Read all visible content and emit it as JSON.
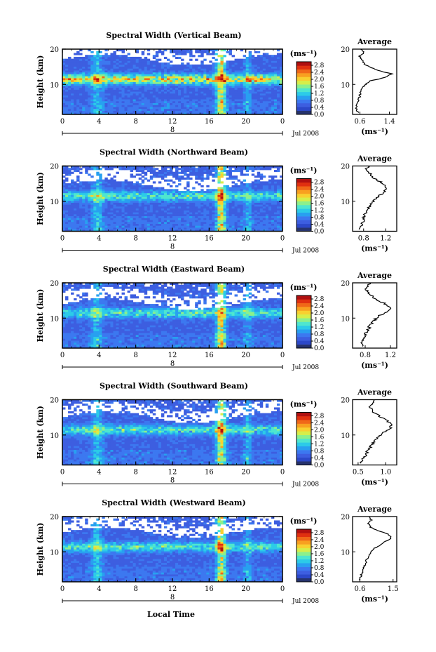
{
  "figure": {
    "xlabel": "Local Time",
    "date_label": "Jul 2008",
    "day_label": "8",
    "colors": [
      "#26336e",
      "#2c48c9",
      "#3d5ee0",
      "#3c78f0",
      "#28a0f0",
      "#2ccbe8",
      "#4ee6cf",
      "#8cf08c",
      "#d6ee4a",
      "#f8d030",
      "#f8a020",
      "#f06818",
      "#e03010",
      "#b01010"
    ]
  },
  "chart_data": [
    {
      "type": "heatmap",
      "title": "Spectral Width (Vertical Beam)",
      "ylabel": "Height (km)",
      "x_ticks": [
        "0",
        "4",
        "8",
        "12",
        "16",
        "20",
        "0"
      ],
      "y_ticks": [
        "20",
        "10"
      ],
      "xlim": [
        0,
        24
      ],
      "ylim": [
        1.5,
        20
      ],
      "colorbar": {
        "unit": "(ms⁻¹)",
        "ticks": [
          "2.8",
          "2.4",
          "2.0",
          "1.6",
          "1.2",
          "0.8",
          "0.4",
          "0.0"
        ],
        "range": [
          0,
          3.0
        ]
      },
      "avg_profile": {
        "title": "Average",
        "xlabel": "(ms⁻¹)",
        "x_ticks": [
          "0.6",
          "1.4"
        ],
        "xlim": [
          0.4,
          1.6
        ],
        "y_ticks": [
          "20",
          "10"
        ],
        "heights": [
          2,
          3,
          4,
          5,
          6,
          7,
          8,
          9,
          10,
          11,
          12,
          13,
          14,
          15,
          16,
          17,
          18,
          19,
          20
        ],
        "values": [
          0.55,
          0.5,
          0.52,
          0.55,
          0.58,
          0.6,
          0.62,
          0.68,
          0.75,
          0.9,
          1.3,
          1.45,
          1.1,
          0.85,
          0.7,
          0.65,
          0.6,
          0.7,
          0.62
        ]
      }
    },
    {
      "type": "heatmap",
      "title": "Spectral Width (Northward Beam)",
      "ylabel": "Height (km)",
      "x_ticks": [
        "0",
        "4",
        "8",
        "12",
        "16",
        "20",
        "0"
      ],
      "y_ticks": [
        "20",
        "10"
      ],
      "xlim": [
        0,
        24
      ],
      "ylim": [
        1.5,
        20
      ],
      "colorbar": {
        "unit": "(ms⁻¹)",
        "ticks": [
          "2.8",
          "2.4",
          "2.0",
          "1.6",
          "1.2",
          "0.8",
          "0.4",
          "0.0"
        ],
        "range": [
          0,
          3.0
        ]
      },
      "avg_profile": {
        "title": "Average",
        "xlabel": "(ms⁻¹)",
        "x_ticks": [
          "0.8",
          "1.2"
        ],
        "xlim": [
          0.6,
          1.4
        ],
        "y_ticks": [
          "20",
          "10"
        ],
        "heights": [
          2,
          3,
          4,
          5,
          6,
          7,
          8,
          9,
          10,
          11,
          12,
          13,
          14,
          15,
          16,
          17,
          18,
          19,
          20
        ],
        "values": [
          0.72,
          0.75,
          0.78,
          0.8,
          0.82,
          0.85,
          0.88,
          0.92,
          0.98,
          1.05,
          1.12,
          1.18,
          1.2,
          1.15,
          1.05,
          0.95,
          0.9,
          0.85,
          0.88
        ]
      }
    },
    {
      "type": "heatmap",
      "title": "Spectral Width (Eastward Beam)",
      "ylabel": "Height (km)",
      "x_ticks": [
        "0",
        "4",
        "8",
        "12",
        "16",
        "20",
        "0"
      ],
      "y_ticks": [
        "20",
        "10"
      ],
      "xlim": [
        0,
        24
      ],
      "ylim": [
        1.5,
        20
      ],
      "colorbar": {
        "unit": "(ms⁻¹)",
        "ticks": [
          "2.8",
          "2.4",
          "2.0",
          "1.6",
          "1.2",
          "0.8",
          "0.4",
          "0.0"
        ],
        "range": [
          0,
          3.0
        ]
      },
      "avg_profile": {
        "title": "Average",
        "xlabel": "(ms⁻¹)",
        "x_ticks": [
          "0.8",
          "1.2"
        ],
        "xlim": [
          0.6,
          1.3
        ],
        "y_ticks": [
          "20",
          "10"
        ],
        "heights": [
          2,
          3,
          4,
          5,
          6,
          7,
          8,
          9,
          10,
          11,
          12,
          13,
          14,
          15,
          16,
          17,
          18,
          19,
          20
        ],
        "values": [
          0.74,
          0.76,
          0.78,
          0.8,
          0.82,
          0.85,
          0.88,
          0.92,
          0.98,
          1.05,
          1.15,
          1.2,
          1.12,
          1.0,
          0.92,
          0.86,
          0.82,
          0.85,
          0.88
        ]
      }
    },
    {
      "type": "heatmap",
      "title": "Spectral Width (Southward Beam)",
      "ylabel": "Height (km)",
      "x_ticks": [
        "0",
        "4",
        "8",
        "12",
        "16",
        "20",
        "0"
      ],
      "y_ticks": [
        "20",
        "10"
      ],
      "xlim": [
        0,
        24
      ],
      "ylim": [
        1.5,
        20
      ],
      "colorbar": {
        "unit": "(ms⁻¹)",
        "ticks": [
          "2.8",
          "2.4",
          "2.0",
          "1.6",
          "1.2",
          "0.8",
          "0.4",
          "0.0"
        ],
        "range": [
          0,
          3.0
        ]
      },
      "avg_profile": {
        "title": "Average",
        "xlabel": "(ms⁻¹)",
        "x_ticks": [
          "0.5",
          "1.0"
        ],
        "xlim": [
          0.4,
          1.2
        ],
        "y_ticks": [
          "20",
          "10"
        ],
        "heights": [
          2,
          3,
          4,
          5,
          6,
          7,
          8,
          9,
          10,
          11,
          12,
          13,
          14,
          15,
          16,
          17,
          18,
          19,
          20
        ],
        "values": [
          0.55,
          0.58,
          0.62,
          0.66,
          0.7,
          0.74,
          0.78,
          0.84,
          0.9,
          0.98,
          1.08,
          1.12,
          1.02,
          0.92,
          0.82,
          0.75,
          0.7,
          0.75,
          0.78
        ]
      }
    },
    {
      "type": "heatmap",
      "title": "Spectral Width (Westward Beam)",
      "ylabel": "Height (km)",
      "x_ticks": [
        "0",
        "4",
        "8",
        "12",
        "16",
        "20",
        "0"
      ],
      "y_ticks": [
        "20",
        "10"
      ],
      "xlim": [
        0,
        24
      ],
      "ylim": [
        1.5,
        20
      ],
      "colorbar": {
        "unit": "(ms⁻¹)",
        "ticks": [
          "2.8",
          "2.4",
          "2.0",
          "1.6",
          "1.2",
          "0.8",
          "0.4",
          "0.0"
        ],
        "range": [
          0,
          3.0
        ]
      },
      "avg_profile": {
        "title": "Average",
        "xlabel": "(ms⁻¹)",
        "x_ticks": [
          "0.6",
          "1.5"
        ],
        "xlim": [
          0.4,
          1.6
        ],
        "y_ticks": [
          "20",
          "10"
        ],
        "heights": [
          2,
          3,
          4,
          5,
          6,
          7,
          8,
          9,
          10,
          11,
          12,
          13,
          14,
          15,
          16,
          17,
          18,
          19,
          20
        ],
        "values": [
          0.6,
          0.62,
          0.65,
          0.68,
          0.72,
          0.76,
          0.8,
          0.86,
          0.92,
          1.0,
          1.15,
          1.3,
          1.45,
          1.35,
          1.1,
          0.9,
          0.82,
          0.9,
          0.85
        ]
      }
    }
  ]
}
